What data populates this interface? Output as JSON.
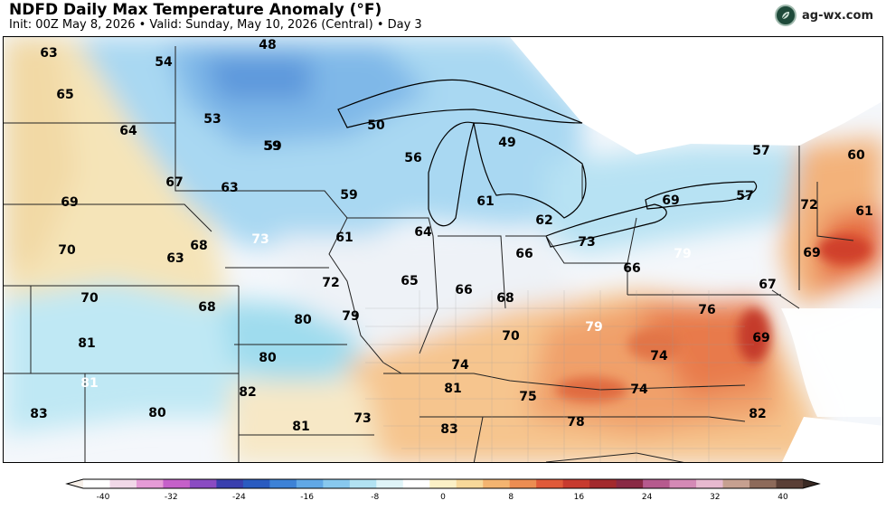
{
  "header": {
    "title": "NDFD Daily Max Temperature Anomaly (°F)",
    "subtitle": "Init: 00Z May 8, 2026  •  Valid: Sunday, May 10, 2026 (Central)  •  Day 3",
    "brand": "ag-wx.com"
  },
  "colorbar": {
    "ticks": [
      "-40",
      "-32",
      "-24",
      "-16",
      "-8",
      "0",
      "8",
      "16",
      "24",
      "32",
      "40"
    ]
  },
  "map_labels": [
    {
      "text": "63",
      "color": "#000"
    },
    {
      "text": "54",
      "color": "#000"
    },
    {
      "text": "48",
      "color": "#000"
    },
    {
      "text": "65",
      "color": "#000"
    },
    {
      "text": "53",
      "color": "#000"
    },
    {
      "text": "64",
      "color": "#000"
    },
    {
      "text": "59",
      "color": "#000"
    },
    {
      "text": "50",
      "color": "#000"
    },
    {
      "text": "49",
      "color": "#000"
    },
    {
      "text": "56",
      "color": "#000"
    },
    {
      "text": "57",
      "color": "#000"
    },
    {
      "text": "60",
      "color": "#000"
    },
    {
      "text": "67",
      "color": "#000"
    },
    {
      "text": "63",
      "color": "#000"
    },
    {
      "text": "59",
      "color": "#000"
    },
    {
      "text": "59",
      "color": "#000"
    },
    {
      "text": "61",
      "color": "#000"
    },
    {
      "text": "57",
      "color": "#000"
    },
    {
      "text": "69",
      "color": "#000"
    },
    {
      "text": "69",
      "color": "#000"
    },
    {
      "text": "70",
      "color": "#000"
    },
    {
      "text": "61",
      "color": "#000"
    },
    {
      "text": "62",
      "color": "#000"
    },
    {
      "text": "64",
      "color": "#000"
    },
    {
      "text": "61",
      "color": "#000"
    },
    {
      "text": "73",
      "color": "#000"
    },
    {
      "text": "68",
      "color": "#000"
    },
    {
      "text": "73",
      "color": "#fff"
    },
    {
      "text": "69",
      "color": "#000"
    },
    {
      "text": "72",
      "color": "#000"
    },
    {
      "text": "63",
      "color": "#000"
    },
    {
      "text": "66",
      "color": "#000"
    },
    {
      "text": "65",
      "color": "#000"
    },
    {
      "text": "66",
      "color": "#000"
    },
    {
      "text": "66",
      "color": "#000"
    },
    {
      "text": "79",
      "color": "#fff"
    },
    {
      "text": "72",
      "color": "#000"
    },
    {
      "text": "67",
      "color": "#000"
    },
    {
      "text": "70",
      "color": "#000"
    },
    {
      "text": "68",
      "color": "#000"
    },
    {
      "text": "68",
      "color": "#000"
    },
    {
      "text": "80",
      "color": "#000"
    },
    {
      "text": "79",
      "color": "#000"
    },
    {
      "text": "76",
      "color": "#000"
    },
    {
      "text": "79",
      "color": "#fff"
    },
    {
      "text": "70",
      "color": "#000"
    },
    {
      "text": "69",
      "color": "#000"
    },
    {
      "text": "81",
      "color": "#000"
    },
    {
      "text": "80",
      "color": "#000"
    },
    {
      "text": "74",
      "color": "#000"
    },
    {
      "text": "74",
      "color": "#000"
    },
    {
      "text": "82",
      "color": "#000"
    },
    {
      "text": "81",
      "color": "#fff"
    },
    {
      "text": "81",
      "color": "#000"
    },
    {
      "text": "75",
      "color": "#000"
    },
    {
      "text": "74",
      "color": "#000"
    },
    {
      "text": "83",
      "color": "#000"
    },
    {
      "text": "80",
      "color": "#000"
    },
    {
      "text": "73",
      "color": "#000"
    },
    {
      "text": "78",
      "color": "#000"
    },
    {
      "text": "82",
      "color": "#000"
    },
    {
      "text": "81",
      "color": "#000"
    },
    {
      "text": "83",
      "color": "#000"
    }
  ]
}
